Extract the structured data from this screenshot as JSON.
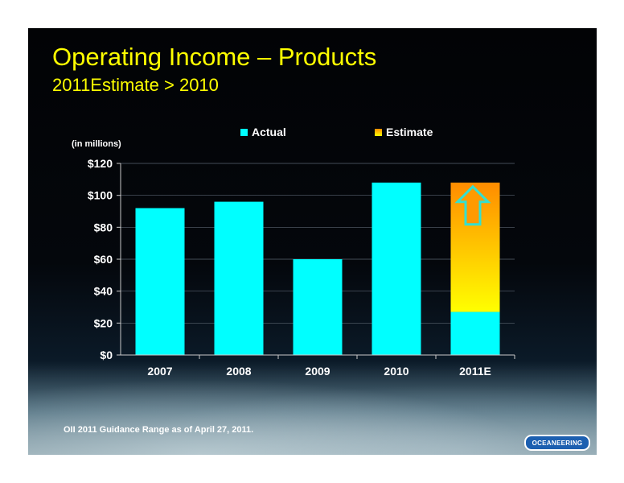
{
  "slide": {
    "title": "Operating Income – Products",
    "subtitle": "2011Estimate > 2010",
    "units_note": "(in millions)",
    "footnote": "OII 2011 Guidance Range as of April 27, 2011.",
    "logo_text": "OCEANEERING"
  },
  "colors": {
    "title": "#ffff00",
    "actual": "#00ffff",
    "estimate_top": "#ff8c00",
    "estimate_bottom": "#ffff00",
    "arrow_fill": "#ff9a00",
    "arrow_stroke": "#33e0d0"
  },
  "chart_data": {
    "type": "bar",
    "title": "",
    "xlabel": "",
    "ylabel": "",
    "ylim": [
      0,
      120
    ],
    "yticks": [
      "$0",
      "$20",
      "$40",
      "$60",
      "$80",
      "$100",
      "$120"
    ],
    "categories": [
      "2007",
      "2008",
      "2009",
      "2010",
      "2011E"
    ],
    "series": [
      {
        "name": "Actual",
        "values": [
          92,
          96,
          60,
          108,
          27
        ]
      },
      {
        "name": "Estimate",
        "values": [
          0,
          0,
          0,
          0,
          81
        ]
      }
    ],
    "stacked": true,
    "grid": true,
    "legend": "top",
    "annotation": "up-arrow-icon"
  }
}
